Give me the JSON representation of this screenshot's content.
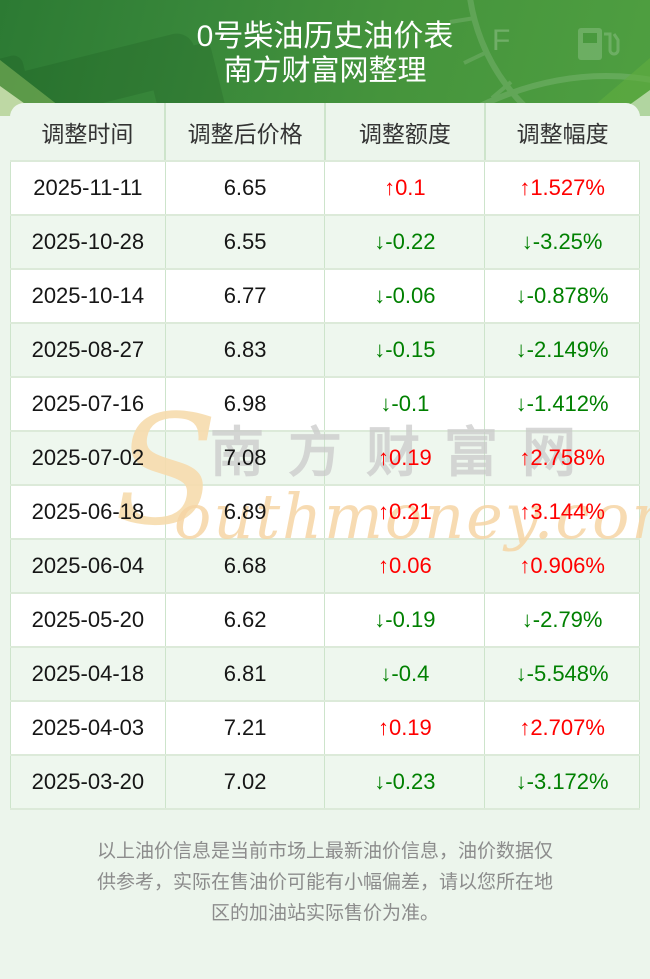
{
  "header": {
    "title": "0号柴油历史油价表",
    "subtitle": "南方财富网整理"
  },
  "table": {
    "columns": [
      "调整时间",
      "调整后价格",
      "调整额度",
      "调整幅度"
    ],
    "rows": [
      {
        "date": "2025-11-11",
        "price": "6.65",
        "change": "↑0.1",
        "percent": "↑1.527%",
        "direction": "up"
      },
      {
        "date": "2025-10-28",
        "price": "6.55",
        "change": "↓-0.22",
        "percent": "↓-3.25%",
        "direction": "down"
      },
      {
        "date": "2025-10-14",
        "price": "6.77",
        "change": "↓-0.06",
        "percent": "↓-0.878%",
        "direction": "down"
      },
      {
        "date": "2025-08-27",
        "price": "6.83",
        "change": "↓-0.15",
        "percent": "↓-2.149%",
        "direction": "down"
      },
      {
        "date": "2025-07-16",
        "price": "6.98",
        "change": "↓-0.1",
        "percent": "↓-1.412%",
        "direction": "down"
      },
      {
        "date": "2025-07-02",
        "price": "7.08",
        "change": "↑0.19",
        "percent": "↑2.758%",
        "direction": "up"
      },
      {
        "date": "2025-06-18",
        "price": "6.89",
        "change": "↑0.21",
        "percent": "↑3.144%",
        "direction": "up"
      },
      {
        "date": "2025-06-04",
        "price": "6.68",
        "change": "↑0.06",
        "percent": "↑0.906%",
        "direction": "up"
      },
      {
        "date": "2025-05-20",
        "price": "6.62",
        "change": "↓-0.19",
        "percent": "↓-2.79%",
        "direction": "down"
      },
      {
        "date": "2025-04-18",
        "price": "6.81",
        "change": "↓-0.4",
        "percent": "↓-5.548%",
        "direction": "down"
      },
      {
        "date": "2025-04-03",
        "price": "7.21",
        "change": "↑0.19",
        "percent": "↑2.707%",
        "direction": "up"
      },
      {
        "date": "2025-03-20",
        "price": "7.02",
        "change": "↓-0.23",
        "percent": "↓-3.172%",
        "direction": "down"
      }
    ]
  },
  "watermark": {
    "initial": "S",
    "cn": "南方财富网",
    "en_rest": "outhmoney.com"
  },
  "footer": {
    "lines": [
      "以上油价信息是当前市场上最新油价信息，油价数据仅",
      "供参考，实际在售油价可能有小幅偏差，请以您所在地",
      "区的加油站实际售价为准。"
    ]
  },
  "gauge": {
    "full_label": "F"
  },
  "colors": {
    "up_red": "#ff0000",
    "down_green": "#008000",
    "banner_green_dark": "#2c7a33",
    "banner_green_light": "#4f9f41",
    "page_bg": "#ecf5ec",
    "row_alt": "#eef7ee",
    "watermark_tan": "#f6d5a5",
    "watermark_gray": "#c9c9c9"
  }
}
